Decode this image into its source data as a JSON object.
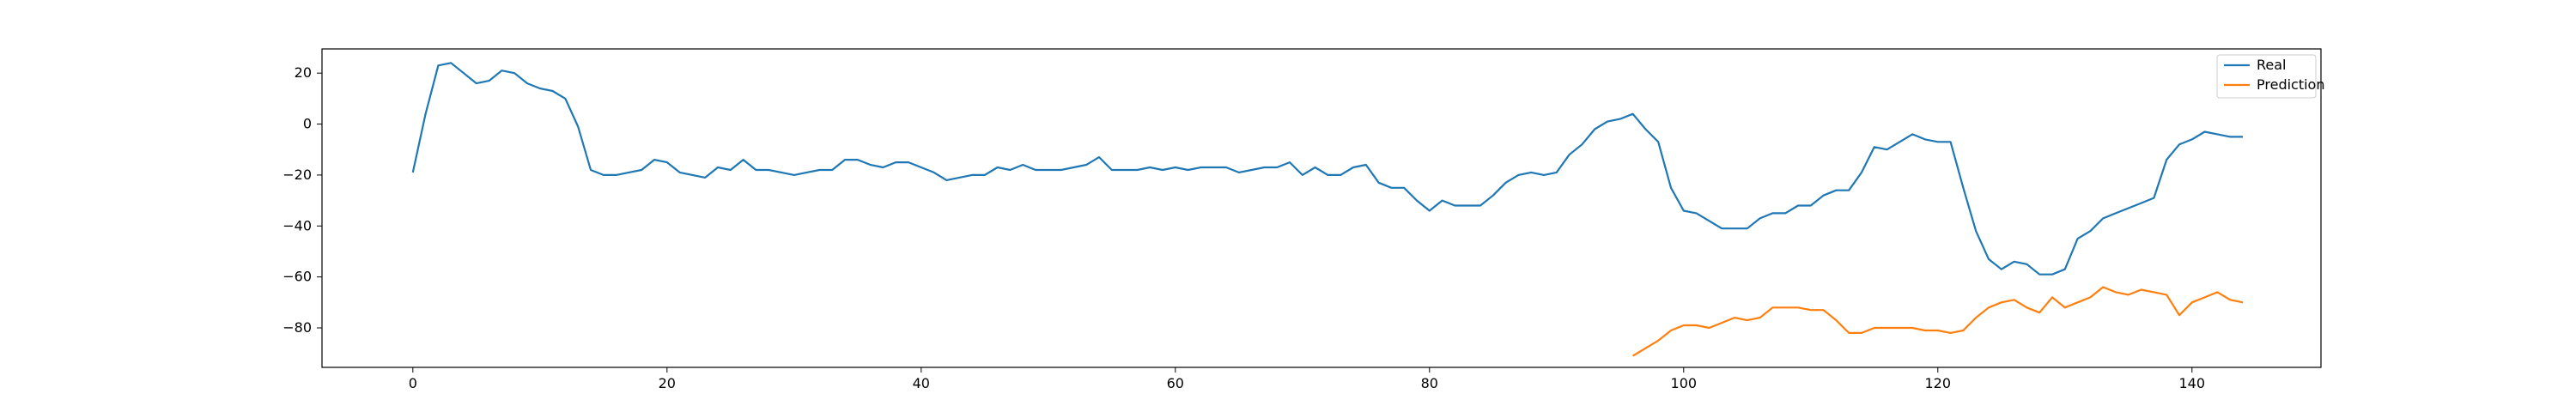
{
  "chart_data": {
    "type": "line",
    "title": "",
    "xlabel": "",
    "ylabel": "",
    "xlim": [
      -7.15,
      150.15
    ],
    "ylim": [
      -95.5,
      29.5
    ],
    "xticks": [
      0,
      20,
      40,
      60,
      80,
      100,
      120,
      140
    ],
    "yticks": [
      20,
      0,
      -20,
      -40,
      -60,
      -80
    ],
    "grid": false,
    "legend_position": "top-right",
    "series": [
      {
        "name": "Real",
        "color": "#1f77b4",
        "x0": 0,
        "values": [
          -19,
          4,
          23,
          24,
          20,
          16,
          17,
          21,
          20,
          16,
          14,
          13,
          10,
          -1,
          -18,
          -20,
          -20,
          -19,
          -18,
          -14,
          -15,
          -19,
          -20,
          -21,
          -17,
          -18,
          -14,
          -18,
          -18,
          -19,
          -20,
          -19,
          -18,
          -18,
          -14,
          -14,
          -16,
          -17,
          -15,
          -15,
          -17,
          -19,
          -22,
          -21,
          -20,
          -20,
          -17,
          -18,
          -16,
          -18,
          -18,
          -18,
          -17,
          -16,
          -13,
          -18,
          -18,
          -18,
          -17,
          -18,
          -17,
          -18,
          -17,
          -17,
          -17,
          -19,
          -18,
          -17,
          -17,
          -15,
          -20,
          -17,
          -20,
          -20,
          -17,
          -16,
          -23,
          -25,
          -25,
          -30,
          -34,
          -30,
          -32,
          -32,
          -32,
          -28,
          -23,
          -20,
          -19,
          -20,
          -19,
          -12,
          -8,
          -2,
          1,
          2,
          4,
          -2,
          -7,
          -25,
          -34,
          -35,
          -38,
          -41,
          -41,
          -41,
          -37,
          -35,
          -35,
          -32,
          -32,
          -28,
          -26,
          -26,
          -19,
          -9,
          -10,
          -7,
          -4,
          -6,
          -7,
          -7,
          -25,
          -42,
          -53,
          -57,
          -54,
          -55,
          -59,
          -59,
          -57,
          -45,
          -42,
          -37,
          -35,
          -33,
          -31,
          -29,
          -14,
          -8,
          -6,
          -3,
          -4,
          -5,
          -5
        ]
      },
      {
        "name": "Prediction",
        "color": "#ff7f0e",
        "x0": 96,
        "values": [
          -91,
          -88,
          -85,
          -81,
          -79,
          -79,
          -80,
          -78,
          -76,
          -77,
          -76,
          -72,
          -72,
          -72,
          -73,
          -73,
          -77,
          -82,
          -82,
          -80,
          -80,
          -80,
          -80,
          -81,
          -81,
          -82,
          -81,
          -76,
          -72,
          -70,
          -69,
          -72,
          -74,
          -68,
          -72,
          -70,
          -68,
          -64,
          -66,
          -67,
          -65,
          -66,
          -67,
          -75,
          -70,
          -68,
          -66,
          -69,
          -70
        ]
      }
    ]
  }
}
